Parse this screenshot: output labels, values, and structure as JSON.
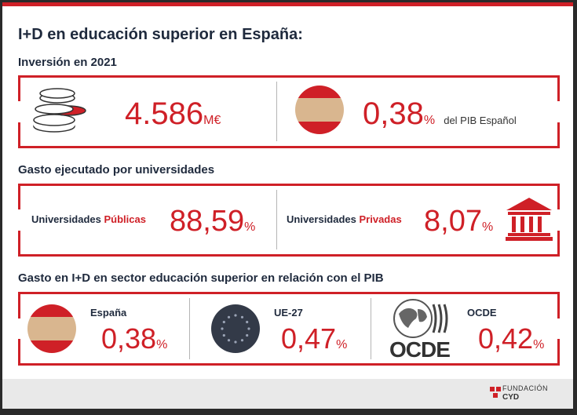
{
  "title": "I+D en educación superior en España:",
  "section1": {
    "heading": "Inversión en 2021",
    "amount_value": "4.586",
    "amount_unit": "M€",
    "pib_value": "0,38",
    "pib_unit": "%",
    "pib_note": "del PIB Español"
  },
  "section2": {
    "heading": "Gasto ejecutado por universidades",
    "public_label_prefix": "Universidades ",
    "public_label_accent": "Públicas",
    "public_value": "88,59",
    "public_unit": "%",
    "private_label_prefix": "Universidades ",
    "private_label_accent": "Privadas",
    "private_value": "8,07",
    "private_unit": "%"
  },
  "section3": {
    "heading": "Gasto en I+D en sector educación superior en relación con el PIB",
    "spain_label": "España",
    "spain_value": "0,38",
    "spain_unit": "%",
    "eu_label": "UE-27",
    "eu_value": "0,47",
    "eu_unit": "%",
    "ocde_label": "OCDE",
    "ocde_logo_text": "OCDE",
    "ocde_value": "0,42",
    "ocde_unit": "%"
  },
  "footer": {
    "brand_line1": "FUNDACIÓN",
    "brand_line2": "CYD"
  },
  "colors": {
    "accent": "#cf2027",
    "heading": "#1f2a3d",
    "flag_yellow": "#d9b68f",
    "eu_blue": "#333a48"
  }
}
